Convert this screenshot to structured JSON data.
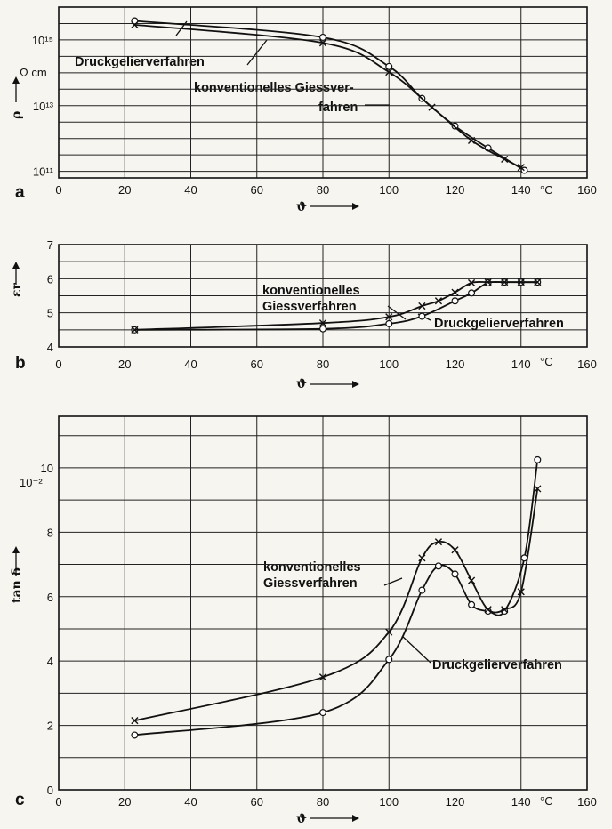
{
  "chart_data": [
    {
      "panel": "a",
      "type": "line",
      "scale": "log",
      "xlabel": "ϑ",
      "x_unit": "°C",
      "ylabel": "ρ",
      "y_unit": "Ω cm",
      "xlim": [
        0,
        160
      ],
      "ylim_log10": [
        10.8,
        16
      ],
      "x_ticks": [
        0,
        20,
        40,
        60,
        80,
        100,
        120,
        140,
        160
      ],
      "y_ticks": [
        {
          "value": 11,
          "label": "10¹¹"
        },
        {
          "value": 13,
          "label": "10¹³"
        },
        {
          "value": 15,
          "label": "10¹⁵"
        }
      ],
      "series": [
        {
          "name": "Druckgelierverfahren",
          "marker": "o",
          "x": [
            23,
            80,
            100,
            110,
            120,
            130,
            141
          ],
          "y_log10": [
            15.58,
            15.08,
            14.19,
            13.22,
            12.38,
            11.71,
            11.03
          ]
        },
        {
          "name": "konventionelles Giessverfahren",
          "marker": "x",
          "x": [
            23,
            80,
            100,
            113,
            125,
            135,
            140
          ],
          "y_log10": [
            15.46,
            14.91,
            14.02,
            12.95,
            11.94,
            11.37,
            11.12
          ]
        }
      ],
      "annotations": [
        {
          "text": "Druckgelierverfahren",
          "series": "o"
        },
        {
          "text": "konventionelles Giessver-",
          "series": "x"
        },
        {
          "text": "fahren",
          "series": "x"
        }
      ]
    },
    {
      "panel": "b",
      "type": "line",
      "xlabel": "ϑ",
      "x_unit": "°C",
      "ylabel": "εr",
      "xlim": [
        0,
        160
      ],
      "ylim": [
        4,
        7
      ],
      "x_ticks": [
        0,
        20,
        40,
        60,
        80,
        100,
        120,
        140,
        160
      ],
      "y_ticks": [
        4,
        5,
        6,
        7
      ],
      "series": [
        {
          "name": "Druckgelierverfahren",
          "marker": "o",
          "x": [
            23,
            80,
            100,
            110,
            120,
            125,
            130,
            135,
            140,
            145
          ],
          "y": [
            4.5,
            4.53,
            4.68,
            4.9,
            5.35,
            5.58,
            5.88,
            5.9,
            5.9,
            5.9
          ]
        },
        {
          "name": "konventionelles Giessverfahren",
          "marker": "x",
          "x": [
            23,
            80,
            100,
            110,
            115,
            120,
            125,
            130,
            135,
            140,
            145
          ],
          "y": [
            4.5,
            4.7,
            4.88,
            5.2,
            5.35,
            5.6,
            5.88,
            5.9,
            5.9,
            5.9,
            5.9
          ]
        }
      ],
      "annotations": [
        {
          "text": "konventionelles",
          "series": "x"
        },
        {
          "text": "Giessverfahren",
          "series": "x"
        },
        {
          "text": "Druckgelierverfahren",
          "series": "o"
        }
      ]
    },
    {
      "panel": "c",
      "type": "line",
      "xlabel": "ϑ",
      "x_unit": "°C",
      "ylabel": "tan δ",
      "y_unit": "10⁻²",
      "xlim": [
        0,
        160
      ],
      "ylim": [
        0,
        11.6
      ],
      "x_ticks": [
        0,
        20,
        40,
        60,
        80,
        100,
        120,
        140,
        160
      ],
      "y_ticks": [
        0,
        2,
        4,
        6,
        8,
        10
      ],
      "series": [
        {
          "name": "Druckgelierverfahren",
          "marker": "o",
          "x": [
            23,
            80,
            100,
            110,
            115,
            120,
            125,
            130,
            135,
            141,
            145
          ],
          "y": [
            1.7,
            2.4,
            4.05,
            6.2,
            6.95,
            6.7,
            5.75,
            5.55,
            5.55,
            7.2,
            10.25
          ]
        },
        {
          "name": "konventionelles Giessverfahren",
          "marker": "x",
          "x": [
            23,
            80,
            100,
            110,
            115,
            120,
            125,
            130,
            135,
            140,
            145
          ],
          "y": [
            2.15,
            3.5,
            4.9,
            7.2,
            7.7,
            7.45,
            6.5,
            5.6,
            5.6,
            6.15,
            9.35
          ]
        }
      ],
      "annotations": [
        {
          "text": "konventionelles",
          "series": "x"
        },
        {
          "text": "Giessverfahren",
          "series": "x"
        },
        {
          "text": "Druckgelierverfahren",
          "series": "o"
        }
      ]
    }
  ],
  "labels": {
    "panel_a": "a",
    "panel_b": "b",
    "panel_c": "c",
    "unit_c": "°C",
    "theta": "ϑ",
    "rho": "ρ",
    "rho_unit": "Ω cm",
    "eps": "εr",
    "tan": "tan δ",
    "tan_unit": "10⁻²"
  }
}
